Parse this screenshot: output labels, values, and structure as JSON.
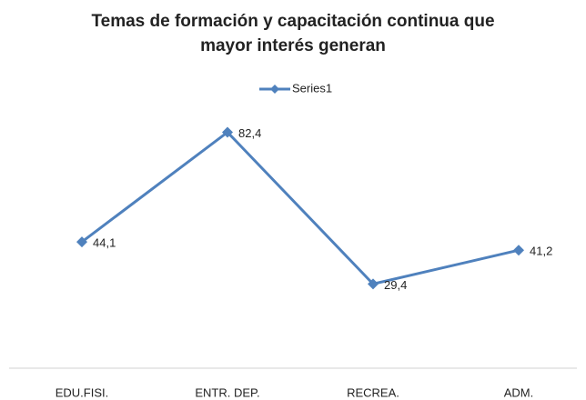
{
  "chart_data": {
    "type": "line",
    "title": "Temas de formación y capacitación continua que mayor interés generan",
    "categories": [
      "EDU.FISI.",
      "ENTR. DEP.",
      "RECREA.",
      "ADM."
    ],
    "series": [
      {
        "name": "Series1",
        "color": "#4f81bd",
        "values": [
          44.1,
          82.4,
          29.4,
          41.2
        ],
        "value_labels": [
          "44,1",
          "82,4",
          "29,4",
          "41,2"
        ]
      }
    ],
    "ylim": [
      0,
      100
    ],
    "legend": "top"
  }
}
